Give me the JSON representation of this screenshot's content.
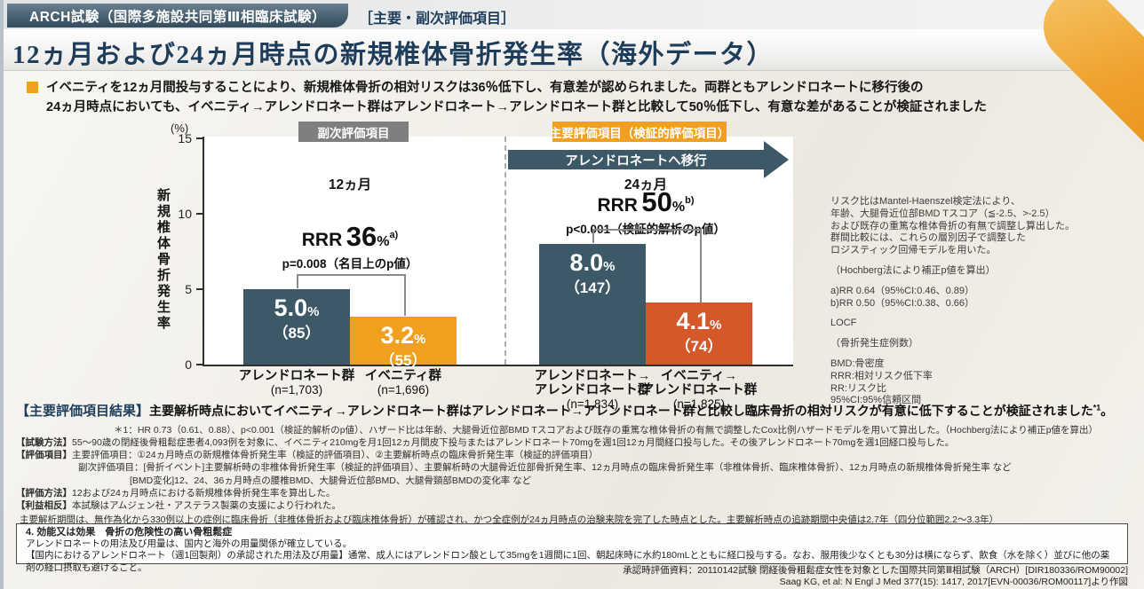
{
  "header": {
    "trial_tag": "ARCH試験（国際多施設共同第Ⅲ相臨床試験）",
    "endpoint_tag": "［主要・副次評価項目］",
    "title": "12ヵ月および24ヵ月時点の新規椎体骨折発生率（海外データ）"
  },
  "key_message": {
    "line1": "イベニティを12ヵ月間投与することにより、新規椎体骨折の相対リスクは36％低下し、有意差が認められました。両群ともアレンドロネートに移行後の",
    "line2": "24ヵ月時点においても、イベニティ→アレンドロネート群はアレンドロネート→アレンドロネート群と比較して50％低下し、有意な差があることが検証されました"
  },
  "chart_data": {
    "type": "bar",
    "ylabel": "新規椎体骨折発生率",
    "y_unit": "(%)",
    "ylim": [
      0,
      15
    ],
    "yticks": [
      "0",
      "5",
      "10",
      "15"
    ],
    "grid": false,
    "badge_secondary": "副次評価項目",
    "badge_primary": "主要評価項目（検証的評価項目）",
    "transition_banner": "アレンドロネートへ移行",
    "groups": [
      {
        "period": "12ヵ月",
        "rrr_label": "RRR",
        "rrr_value": "36",
        "rrr_unit": "%",
        "rrr_note": "a)",
        "p_value": "p=0.008（名目上のp値）",
        "bars": [
          {
            "label": "アレンドロネート群",
            "n_label": "(n=1,703)",
            "value": 5.0,
            "value_text": "5.0",
            "unit": "%",
            "count": "（85）",
            "color": "#3d5968"
          },
          {
            "label": "イベニティ群",
            "n_label": "(n=1,696)",
            "value": 3.2,
            "value_text": "3.2",
            "unit": "%",
            "count": "（55）",
            "color": "#f0a01e"
          }
        ]
      },
      {
        "period": "24ヵ月",
        "rrr_label": "RRR",
        "rrr_value": "50",
        "rrr_unit": "%",
        "rrr_note": "b)",
        "p_value": "p<0.001（検証的解析のp値）",
        "bars": [
          {
            "label": "アレンドロネート→",
            "label2": "アレンドロネート群",
            "n_label": "(n=1,834)",
            "value": 8.0,
            "value_text": "8.0",
            "unit": "%",
            "count": "（147）",
            "color": "#3d5968"
          },
          {
            "label": "イベニティ→",
            "label2": "アレンドロネート群",
            "n_label": "(n=1,825)",
            "value": 4.1,
            "value_text": "4.1",
            "unit": "%",
            "count": "（74）",
            "color": "#d4582a"
          }
        ]
      }
    ]
  },
  "side_notes": {
    "method_lines": [
      "リスク比はMantel-Haenszel検定法により、",
      "年齢、大腿骨近位部BMD Tスコア（≦-2.5、>-2.5）",
      "および既存の重篤な椎体骨折の有無で調整し算出した。",
      "群間比較には、これらの層別因子で調整した",
      "ロジスティック回帰モデルを用いた。"
    ],
    "hochberg": "（Hochberg法により補正p値を算出）",
    "rr_a": "a)RR 0.64（95%CI:0.46、0.89）",
    "rr_b": "b)RR 0.50（95%CI:0.38、0.66）",
    "locf": "LOCF",
    "fracture_note": "（骨折発生症例数）",
    "abbr_lines": [
      "BMD:骨密度",
      "RRR:相対リスク低下率",
      "RR:リスク比",
      "95%CI:95%信頼区間"
    ]
  },
  "results": {
    "label": "【主要評価項目結果】",
    "text": "主要解析時点においてイベニティ→アレンドロネート群はアレンドロネート→アレンドロネート群と比較し臨床骨折の相対リスクが有意に低下することが検証されました",
    "superscript": "*1",
    "period_mark": "。",
    "footnote": "＊1：HR 0.73（0.61、0.88）、p<0.001（検証的解析のp値）、ハザード比は年齢、大腿骨近位部BMD Tスコアおよび既存の重篤な椎体骨折の有無で調整したCox比例ハザードモデルを用いて算出した。（Hochberg法により補正p値を算出）"
  },
  "study_info": {
    "row1_label": "【試験方法】",
    "row1_text": "55～90歳の閉経後骨粗鬆症患者4,093例を対象に、イベニティ210mgを月1回12ヵ月間皮下投与またはアレンドロネート70mgを週1回12ヵ月間経口投与した。その後アレンドロネート70mgを週1回経口投与した。",
    "row2_label": "【評価項目】",
    "row2_text": "主要評価項目：①24ヵ月時点の新規椎体骨折発生率（検証的評価項目）、②主要解析時点の臨床骨折発生率（検証的評価項目）",
    "row3_text": "副次評価項目：[骨折イベント]主要解析時の非椎体骨折発生率（検証的評価項目）、主要解析時の大腿骨近位部骨折発生率、12ヵ月時点の臨床骨折発生率（非椎体骨折、臨床椎体骨折）、12ヵ月時点の新規椎体骨折発生率 など",
    "row4_text": "[BMD変化]12、24、36ヵ月時点の腰椎BMD、大腿骨近位部BMD、大腿骨頸部BMDの変化率 など",
    "row5_label": "【評価方法】",
    "row5_text": "12および24ヵ月時点における新規椎体骨折発生率を算出した。",
    "row6_label": "【利益相反】",
    "row6_text": "本試験はアムジェン社・アステラス製薬の支援により行われた。"
  },
  "analysis_note": "主要解析期間は、無作為化から330例以上の症例に臨床骨折（非椎体骨折および臨床椎体骨折）が確認され、かつ全症例が24ヵ月時点の治験来院を完了した時点とした。主要解析時点の追跡期間中央値は2.7年（四分位範囲2.2～3.3年）",
  "indication_box": {
    "title": "4. 効能又は効果　骨折の危険性の高い骨粗鬆症",
    "line1": "アレンドロネートの用法及び用量は、国内と海外の用量関係が確立している。",
    "line2": "【国内におけるアレンドロネート（週1回製剤）の承認された用法及び用量】通常、成人にはアレンドロン酸として35mgを1週間に1回、朝起床時に水約180mLとともに経口投与する。なお、服用後少なくとも30分は横にならず、飲食（水を除く）並びに他の薬剤の経口摂取も避けること。"
  },
  "footer": {
    "line1": "承認時評価資料：20110142試験 閉経後骨粗鬆症女性を対象とした国際共同第Ⅲ相試験（ARCH）[DIR180336/ROM90002]",
    "line2": "Saag KG, et al: N Engl J Med 377(15): 1417, 2017[EVN-00036/ROM00117]より作図"
  },
  "colors": {
    "slate_bar": "#3d5968",
    "orange_bar": "#f0a01e",
    "rust_bar": "#d4582a",
    "gray_badge": "#7f7f7f",
    "orange_badge": "#f0a01e",
    "navy_text": "#1d3d5a",
    "ribbon_orange": "#efa22e",
    "background": "#f2efe9"
  }
}
